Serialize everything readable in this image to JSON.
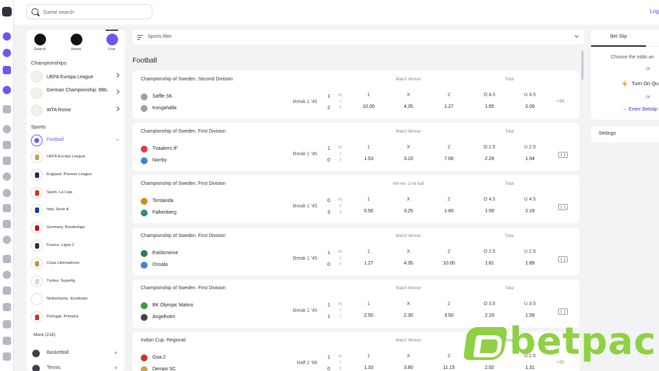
{
  "header": {
    "search_placeholder": "Game search",
    "login_label": "Log"
  },
  "quick_nav": [
    {
      "label": "Search",
      "icon": "search-icon"
    },
    {
      "label": "Home",
      "icon": "grid-icon"
    },
    {
      "label": "Live",
      "icon": "live-icon"
    }
  ],
  "championships_title": "Championships",
  "championships": [
    {
      "label": "UEFA Europa League"
    },
    {
      "label": "German Championship. BBL"
    },
    {
      "label": "WTA Rome"
    }
  ],
  "sports_title": "Sports",
  "football_label": "Football",
  "leagues": [
    {
      "label": "UEFA Europa League"
    },
    {
      "label": "England. Premier League"
    },
    {
      "label": "Spain. La Liga"
    },
    {
      "label": "Italy. Serie A"
    },
    {
      "label": "Germany. Bundesliga"
    },
    {
      "label": "France. Ligue 1"
    },
    {
      "label": "Copa Libertadores"
    },
    {
      "label": "Turkey. Superlig"
    },
    {
      "label": "Netherlands. Eredivisie"
    },
    {
      "label": "Portugal. Primeira"
    }
  ],
  "more_label": "More (216)",
  "other_sports": [
    {
      "label": "Basketball",
      "expand": "+"
    },
    {
      "label": "Tennis",
      "expand": "+"
    }
  ],
  "filter_label": "Sports filter",
  "section_title": "Football",
  "matches": [
    {
      "title": "Championship of Sweden. Second Division",
      "market": "Match Winner",
      "total_label": "Total",
      "home": "Saffle SK",
      "away": "Kongahalla",
      "period": "Break 1 '45",
      "home_score": "1",
      "away_score": "2",
      "hs_label": "H1",
      "home_h1": "1",
      "away_h1": "2",
      "odds_head": [
        "1",
        "X",
        "2",
        "O 4.5",
        "U 4.5"
      ],
      "odds": [
        "10.00",
        "4.35",
        "1.27",
        "1.65",
        "2.09"
      ],
      "extra": "+34"
    },
    {
      "title": "Championship of Sweden. First Division",
      "market": "Match Winner",
      "total_label": "Total",
      "home": "Tvaakers IF",
      "away": "Norrby",
      "period": "Break 1 '45",
      "home_score": "1",
      "away_score": "0",
      "hs_label": "H1",
      "home_h1": "1",
      "away_h1": "0",
      "odds_head": [
        "1",
        "X",
        "2",
        "O 2.5",
        "U 2.5"
      ],
      "odds": [
        "1.53",
        "3.10",
        "7.00",
        "2.29",
        "1.54"
      ],
      "extra": ""
    },
    {
      "title": "Championship of Sweden. First Division",
      "market": "Winner, 2-nd half",
      "total_label": "Total",
      "home": "Torslanda",
      "away": "Falkenberg",
      "period": "Break 1 '45",
      "home_score": "0",
      "away_score": "3",
      "hs_label": "H1",
      "home_h1": "0",
      "away_h1": "3",
      "odds_head": [
        "1",
        "X",
        "2",
        "O 4.5",
        "U 4.5"
      ],
      "odds": [
        "5.50",
        "3.25",
        "1.60",
        "1.59",
        "2.19"
      ],
      "extra": ""
    },
    {
      "title": "Championship of Sweden. First Division",
      "market": "Match Winner",
      "total_label": "Total",
      "home": "Eskilsminne",
      "away": "Onsala",
      "period": "Break 1 '45",
      "home_score": "1",
      "away_score": "0",
      "hs_label": "H1",
      "home_h1": "1",
      "away_h1": "0",
      "odds_head": [
        "1",
        "X",
        "2",
        "O 2.5",
        "U 2.5"
      ],
      "odds": [
        "1.27",
        "4.35",
        "10.00",
        "1.81",
        "1.89"
      ],
      "extra": ""
    },
    {
      "title": "Championship of Sweden. First Division",
      "market": "Match Winner",
      "total_label": "Total",
      "home": "BK Olympic Malmo",
      "away": "Angelholm",
      "period": "Break 1 '45",
      "home_score": "1",
      "away_score": "1",
      "hs_label": "H1",
      "home_h1": "1",
      "away_h1": "1",
      "odds_head": [
        "1",
        "X",
        "2",
        "O 3.5",
        "U 3.5"
      ],
      "odds": [
        "2.50",
        "2.30",
        "3.50",
        "2.19",
        "1.59"
      ],
      "extra": ""
    },
    {
      "title": "Indian Cup. Regional",
      "market": "Match Winner",
      "total_label": "Total",
      "home": "Goa-2",
      "away": "Dempo SC",
      "period": "Half 2 '68",
      "home_score": "1",
      "away_score": "0",
      "hs_label": "H1",
      "home_h1": "1",
      "away_h1": "0",
      "odds_head": [
        "1",
        "X",
        "2",
        "O 2.5",
        "U 2.5"
      ],
      "odds": [
        "1.33",
        "3.80",
        "11.15",
        "2.92",
        "1.31"
      ],
      "extra": "+32"
    }
  ],
  "betslip": {
    "tab_label": "Bet Slip",
    "prompt": "Choose the odds an",
    "or": "or",
    "turn_on": "Turn On Qu",
    "enter": "→ Enter Betslip"
  },
  "settings_label": "Settings",
  "watermark": "betpack",
  "colors": {
    "accent": "#6e56f0",
    "watermark": "#8fd142",
    "link": "#3b35c8"
  }
}
